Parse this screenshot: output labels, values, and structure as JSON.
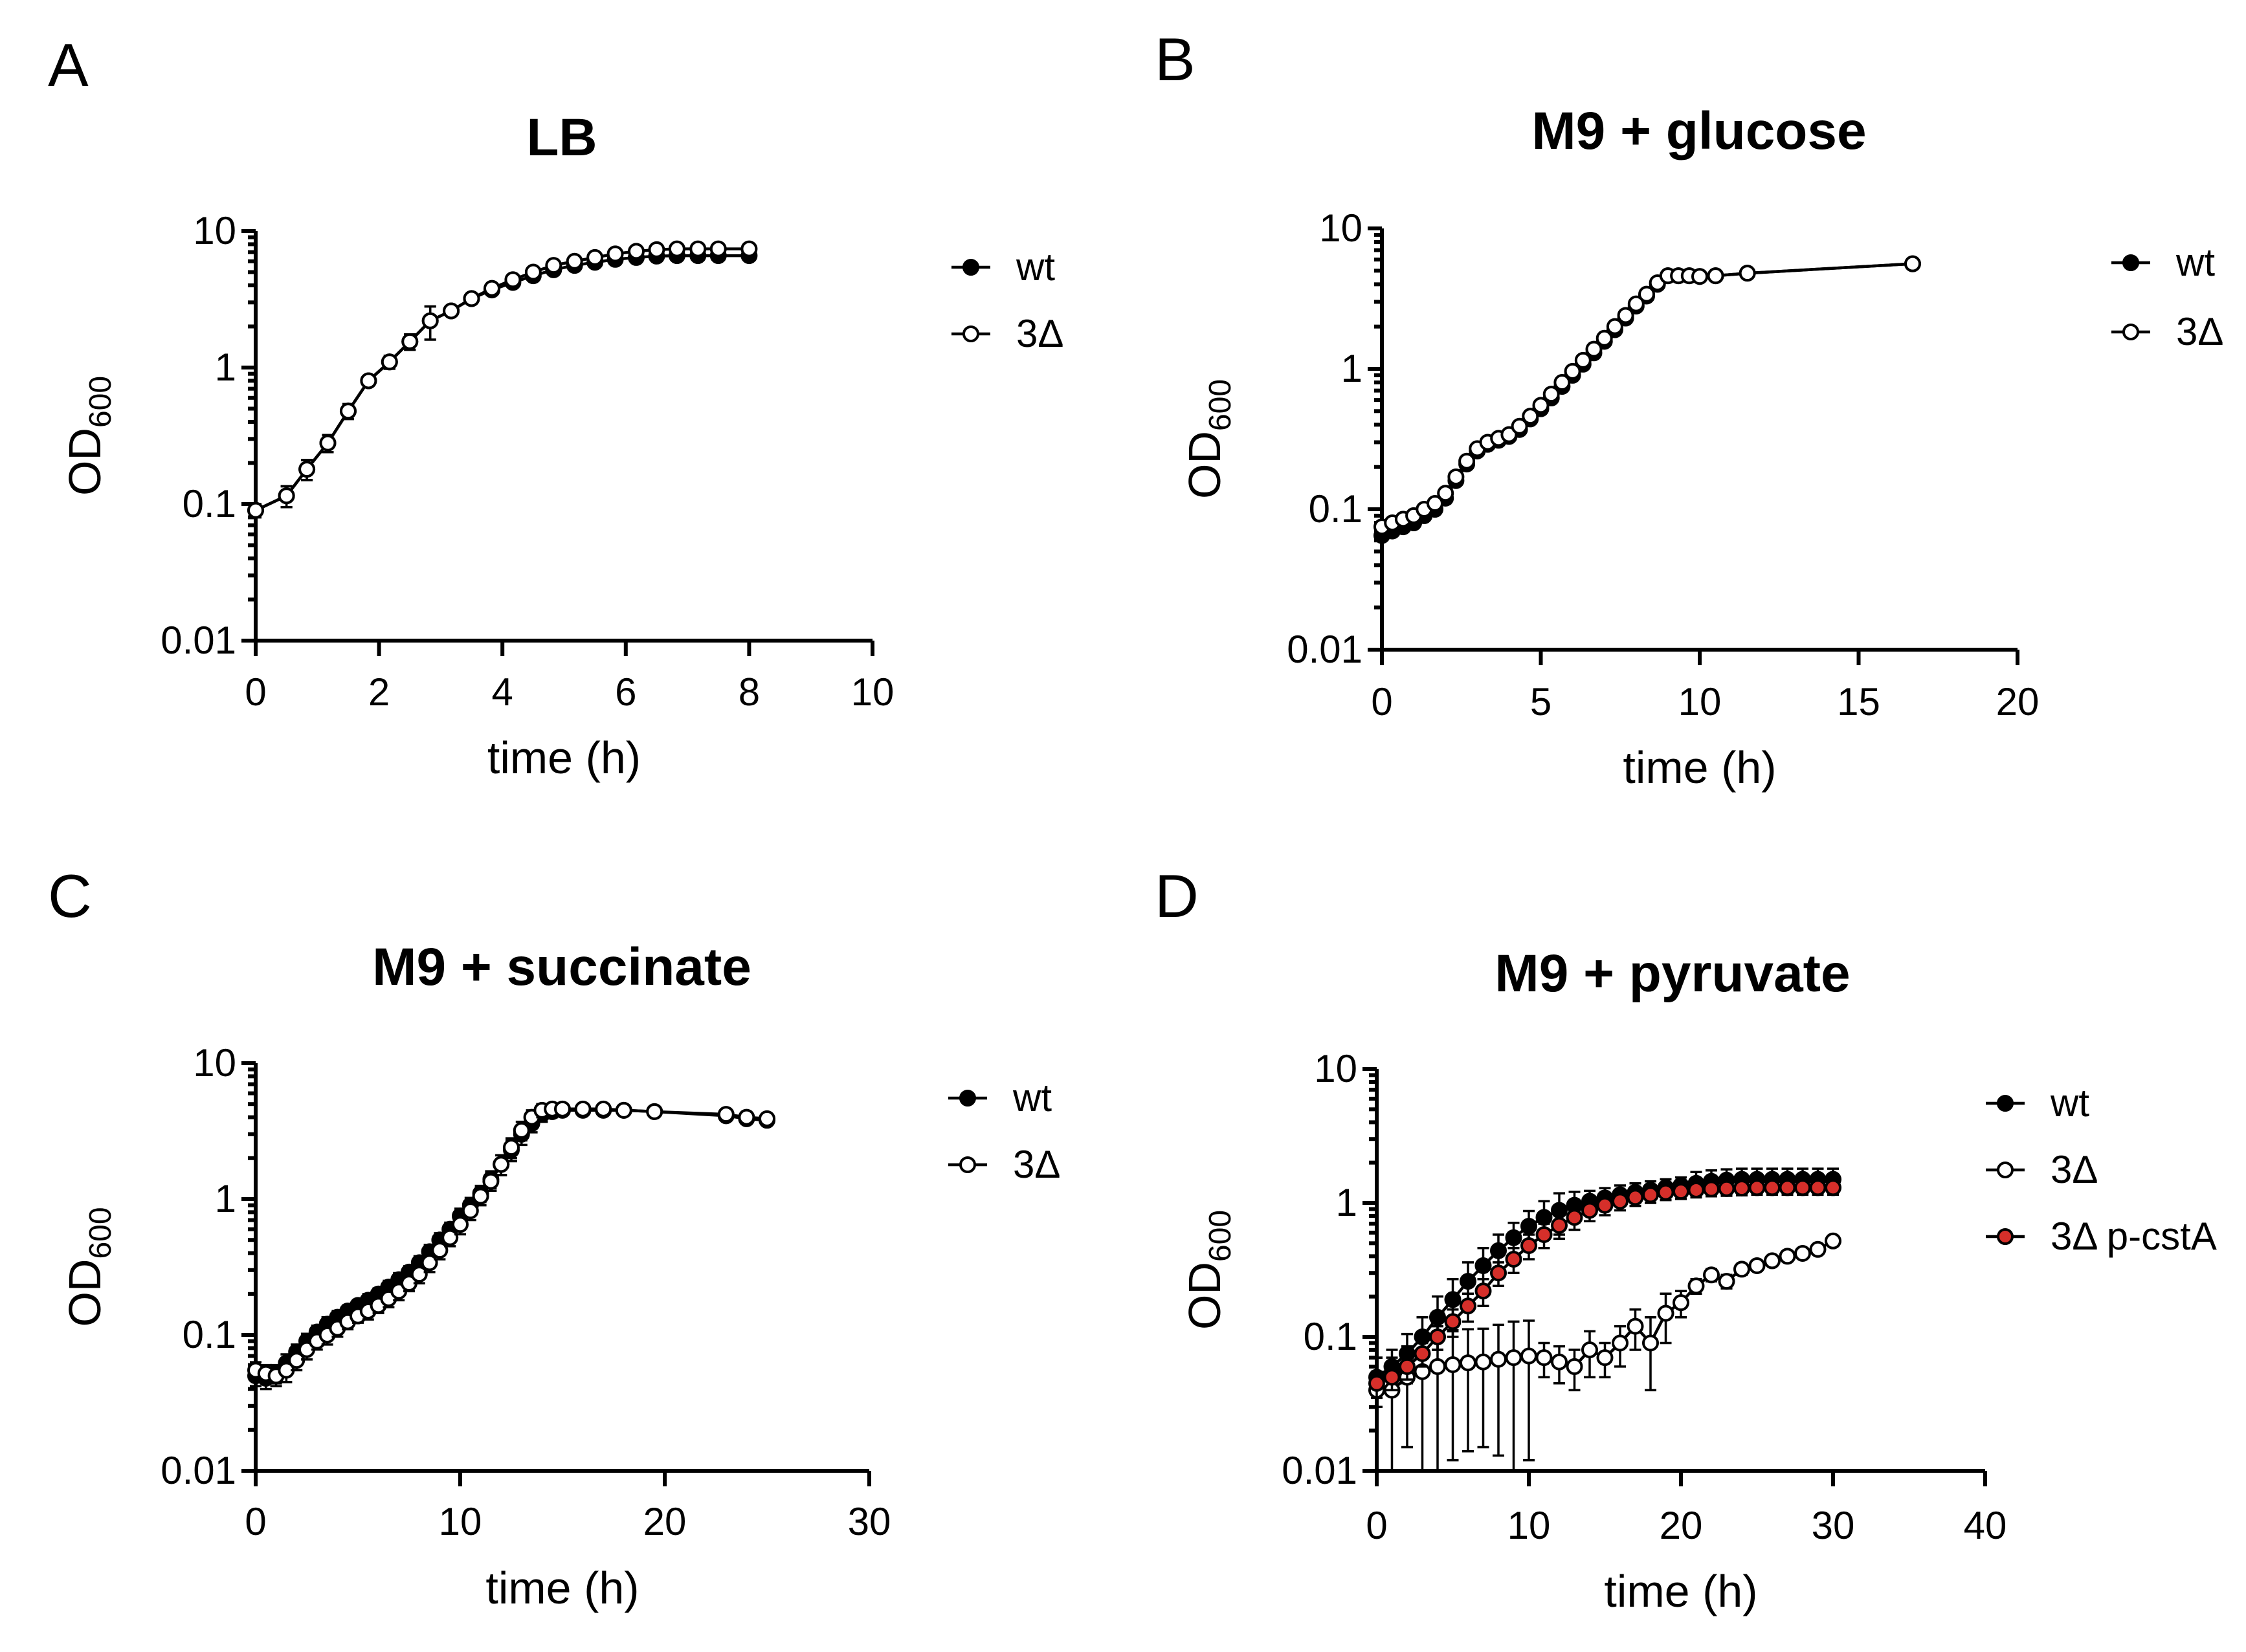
{
  "figure": {
    "panels": [
      {
        "letter": "A",
        "title": "LB"
      },
      {
        "letter": "B",
        "title": "M9 + glucose"
      },
      {
        "letter": "C",
        "title": "M9 + succinate"
      },
      {
        "letter": "D",
        "title": "M9 + pyruvate"
      }
    ]
  },
  "chart_data": [
    {
      "type": "line",
      "title": "LB",
      "xlabel": "time (h)",
      "ylabel": "OD600",
      "yscale": "log",
      "xlim": [
        0,
        10
      ],
      "ylim": [
        0.01,
        10
      ],
      "xticks": [
        0,
        2,
        4,
        6,
        8,
        10
      ],
      "yticks": [
        0.01,
        0.1,
        1,
        10
      ],
      "ytick_labels": [
        "0.01",
        "0.1",
        "1",
        "10"
      ],
      "legend_position": "right",
      "series": [
        {
          "name": "wt",
          "marker": "filled",
          "color": "#000000",
          "x": [
            0,
            0.5,
            0.83,
            1.17,
            1.5,
            1.83,
            2.17,
            2.5,
            2.83,
            3.17,
            3.5,
            3.83,
            4.17,
            4.5,
            4.83,
            5.17,
            5.5,
            5.83,
            6.17,
            6.5,
            6.83,
            7.17,
            7.5,
            8
          ],
          "y": [
            0.09,
            0.115,
            0.18,
            0.28,
            0.48,
            0.8,
            1.1,
            1.55,
            2.2,
            2.6,
            3.2,
            3.7,
            4.2,
            4.7,
            5.2,
            5.6,
            5.9,
            6.2,
            6.4,
            6.55,
            6.6,
            6.6,
            6.6,
            6.6
          ],
          "err": [
            0.01,
            0.02,
            0.03,
            0.04,
            0.06,
            0.06,
            0.12,
            0.2,
            0.6,
            0.2,
            0.2,
            0.2,
            0.2,
            0.2,
            0.2,
            0.2,
            0.2,
            0.2,
            0.2,
            0.2,
            0.2,
            0.2,
            0.2,
            0.2
          ]
        },
        {
          "name": "3Δ",
          "marker": "open",
          "color": "#000000",
          "x": [
            0,
            0.5,
            0.83,
            1.17,
            1.5,
            1.83,
            2.17,
            2.5,
            2.83,
            3.17,
            3.5,
            3.83,
            4.17,
            4.5,
            4.83,
            5.17,
            5.5,
            5.83,
            6.17,
            6.5,
            6.83,
            7.17,
            7.5,
            8
          ],
          "y": [
            0.09,
            0.115,
            0.18,
            0.28,
            0.48,
            0.8,
            1.1,
            1.55,
            2.2,
            2.6,
            3.2,
            3.8,
            4.4,
            5.0,
            5.6,
            6.0,
            6.4,
            6.8,
            7.1,
            7.3,
            7.4,
            7.4,
            7.4,
            7.4
          ],
          "err": [
            0.01,
            0.02,
            0.03,
            0.04,
            0.06,
            0.06,
            0.12,
            0.2,
            0.6,
            0.2,
            0.2,
            0.2,
            0.2,
            0.2,
            0.2,
            0.2,
            0.2,
            0.2,
            0.2,
            0.2,
            0.2,
            0.2,
            0.2,
            0.2
          ]
        }
      ]
    },
    {
      "type": "line",
      "title": "M9 + glucose",
      "xlabel": "time (h)",
      "ylabel": "OD600",
      "yscale": "log",
      "xlim": [
        0,
        20
      ],
      "ylim": [
        0.01,
        10
      ],
      "xticks": [
        0,
        5,
        10,
        15,
        20
      ],
      "yticks": [
        0.01,
        0.1,
        1,
        10
      ],
      "ytick_labels": [
        "0.01",
        "0.1",
        "1",
        "10"
      ],
      "legend_position": "right",
      "series": [
        {
          "name": "wt",
          "marker": "filled",
          "color": "#000000",
          "x": [
            0,
            0.33,
            0.67,
            1,
            1.33,
            1.67,
            2,
            2.33,
            2.67,
            3,
            3.33,
            3.67,
            4,
            4.33,
            4.67,
            5,
            5.33,
            5.67,
            6,
            6.33,
            6.67,
            7,
            7.33,
            7.67,
            8,
            8.33,
            8.67,
            9,
            9.33,
            9.67,
            10,
            10.5,
            11.5,
            16.7
          ],
          "y": [
            0.065,
            0.07,
            0.075,
            0.08,
            0.09,
            0.1,
            0.12,
            0.16,
            0.21,
            0.26,
            0.29,
            0.31,
            0.33,
            0.37,
            0.44,
            0.52,
            0.62,
            0.75,
            0.9,
            1.08,
            1.3,
            1.57,
            1.9,
            2.3,
            2.8,
            3.3,
            4.0,
            4.6,
            4.6,
            4.6,
            4.55,
            4.6,
            4.8,
            5.6
          ],
          "err": [
            0.005,
            0.005,
            0.005,
            0.005,
            0.005,
            0.005,
            0.01,
            0.01,
            0.01,
            0.01,
            0.01,
            0.01,
            0.01,
            0.02,
            0.02,
            0.02,
            0.03,
            0.03,
            0.04,
            0.05,
            0.06,
            0.08,
            0.1,
            0.1,
            0.1,
            0.1,
            0.1,
            0.1,
            0.1,
            0.1,
            0.1,
            0.1,
            0.1,
            0.1
          ]
        },
        {
          "name": "3Δ",
          "marker": "open",
          "color": "#000000",
          "x": [
            0,
            0.33,
            0.67,
            1,
            1.33,
            1.67,
            2,
            2.33,
            2.67,
            3,
            3.33,
            3.67,
            4,
            4.33,
            4.67,
            5,
            5.33,
            5.67,
            6,
            6.33,
            6.67,
            7,
            7.33,
            7.67,
            8,
            8.33,
            8.67,
            9,
            9.33,
            9.67,
            10,
            10.5,
            11.5,
            16.7
          ],
          "y": [
            0.075,
            0.08,
            0.085,
            0.09,
            0.1,
            0.11,
            0.13,
            0.17,
            0.22,
            0.27,
            0.3,
            0.32,
            0.34,
            0.39,
            0.46,
            0.55,
            0.66,
            0.8,
            0.96,
            1.15,
            1.38,
            1.65,
            2.0,
            2.4,
            2.9,
            3.4,
            4.1,
            4.6,
            4.6,
            4.6,
            4.55,
            4.6,
            4.8,
            5.6
          ],
          "err": [
            0.005,
            0.005,
            0.005,
            0.005,
            0.005,
            0.005,
            0.01,
            0.01,
            0.01,
            0.01,
            0.01,
            0.01,
            0.01,
            0.02,
            0.02,
            0.02,
            0.03,
            0.03,
            0.04,
            0.05,
            0.06,
            0.08,
            0.1,
            0.1,
            0.1,
            0.1,
            0.1,
            0.1,
            0.1,
            0.1,
            0.1,
            0.1,
            0.1,
            0.1
          ]
        }
      ]
    },
    {
      "type": "line",
      "title": "M9 + succinate",
      "xlabel": "time (h)",
      "ylabel": "OD600",
      "yscale": "log",
      "xlim": [
        0,
        30
      ],
      "ylim": [
        0.01,
        10
      ],
      "xticks": [
        0,
        10,
        20,
        30
      ],
      "yticks": [
        0.01,
        0.1,
        1,
        10
      ],
      "ytick_labels": [
        "0.01",
        "0.1",
        "1",
        "10"
      ],
      "legend_position": "right",
      "series": [
        {
          "name": "wt",
          "marker": "filled",
          "color": "#000000",
          "x": [
            0,
            0.5,
            1,
            1.5,
            2,
            2.5,
            3,
            3.5,
            4,
            4.5,
            5,
            5.5,
            6,
            6.5,
            7,
            7.5,
            8,
            8.5,
            9,
            9.5,
            10,
            10.5,
            11,
            11.5,
            12,
            12.5,
            13,
            13.5,
            14,
            14.5,
            15,
            16,
            17,
            18,
            19.5,
            23,
            24,
            25
          ],
          "y": [
            0.05,
            0.048,
            0.052,
            0.062,
            0.075,
            0.09,
            0.105,
            0.12,
            0.135,
            0.15,
            0.165,
            0.18,
            0.2,
            0.225,
            0.255,
            0.29,
            0.34,
            0.41,
            0.5,
            0.6,
            0.75,
            0.9,
            1.1,
            1.4,
            1.8,
            2.3,
            3.0,
            3.6,
            4.2,
            4.4,
            4.5,
            4.5,
            4.5,
            4.5,
            4.4,
            4.1,
            3.9,
            3.8
          ],
          "err": [
            0.008,
            0.008,
            0.008,
            0.01,
            0.01,
            0.012,
            0.012,
            0.015,
            0.015,
            0.015,
            0.015,
            0.02,
            0.02,
            0.025,
            0.03,
            0.03,
            0.04,
            0.05,
            0.06,
            0.07,
            0.1,
            0.12,
            0.15,
            0.2,
            0.3,
            0.4,
            0.5,
            0.5,
            0.5,
            0.4,
            0.3,
            0.2,
            0.2,
            0.2,
            0.2,
            0.2,
            0.2,
            0.2
          ]
        },
        {
          "name": "3Δ",
          "marker": "open",
          "color": "#000000",
          "x": [
            0,
            0.5,
            1,
            1.5,
            2,
            2.5,
            3,
            3.5,
            4,
            4.5,
            5,
            5.5,
            6,
            6.5,
            7,
            7.5,
            8,
            8.5,
            9,
            9.5,
            10,
            10.5,
            11,
            11.5,
            12,
            12.5,
            13,
            13.5,
            14,
            14.5,
            15,
            16,
            17,
            18,
            19.5,
            23,
            24,
            25
          ],
          "y": [
            0.055,
            0.052,
            0.05,
            0.055,
            0.065,
            0.078,
            0.09,
            0.1,
            0.112,
            0.125,
            0.138,
            0.15,
            0.165,
            0.185,
            0.21,
            0.24,
            0.28,
            0.34,
            0.42,
            0.52,
            0.65,
            0.82,
            1.05,
            1.35,
            1.8,
            2.4,
            3.2,
            4.0,
            4.5,
            4.6,
            4.6,
            4.6,
            4.6,
            4.5,
            4.4,
            4.2,
            4.0,
            3.9
          ],
          "err": [
            0.008,
            0.008,
            0.008,
            0.01,
            0.01,
            0.012,
            0.012,
            0.015,
            0.015,
            0.015,
            0.015,
            0.02,
            0.02,
            0.025,
            0.03,
            0.03,
            0.04,
            0.05,
            0.06,
            0.07,
            0.1,
            0.12,
            0.15,
            0.2,
            0.3,
            0.4,
            0.5,
            0.5,
            0.5,
            0.4,
            0.3,
            0.2,
            0.2,
            0.2,
            0.2,
            0.2,
            0.2,
            0.2
          ]
        }
      ]
    },
    {
      "type": "line",
      "title": "M9 + pyruvate",
      "xlabel": "time (h)",
      "ylabel": "OD600",
      "yscale": "log",
      "xlim": [
        0,
        40
      ],
      "ylim": [
        0.01,
        10
      ],
      "xticks": [
        0,
        10,
        20,
        30,
        40
      ],
      "yticks": [
        0.01,
        0.1,
        1,
        10
      ],
      "ytick_labels": [
        "0.01",
        "0.1",
        "1",
        "10"
      ],
      "legend_position": "right",
      "series": [
        {
          "name": "wt",
          "marker": "filled",
          "color": "#000000",
          "x": [
            0,
            1,
            2,
            3,
            4,
            5,
            6,
            7,
            8,
            9,
            10,
            11,
            12,
            13,
            14,
            15,
            16,
            17,
            18,
            19,
            20,
            21,
            22,
            23,
            24,
            25,
            26,
            27,
            28,
            29,
            30
          ],
          "y": [
            0.05,
            0.06,
            0.075,
            0.1,
            0.14,
            0.19,
            0.26,
            0.34,
            0.44,
            0.55,
            0.67,
            0.78,
            0.88,
            0.96,
            1.03,
            1.09,
            1.15,
            1.2,
            1.25,
            1.3,
            1.35,
            1.4,
            1.45,
            1.48,
            1.5,
            1.5,
            1.5,
            1.5,
            1.5,
            1.5,
            1.5
          ],
          "err": [
            0.02,
            0.02,
            0.03,
            0.04,
            0.06,
            0.08,
            0.1,
            0.12,
            0.14,
            0.16,
            0.2,
            0.25,
            0.3,
            0.25,
            0.2,
            0.2,
            0.2,
            0.2,
            0.2,
            0.2,
            0.2,
            0.3,
            0.3,
            0.3,
            0.3,
            0.3,
            0.3,
            0.3,
            0.3,
            0.3,
            0.3
          ]
        },
        {
          "name": "3Δ",
          "marker": "open",
          "color": "#000000",
          "x": [
            0,
            1,
            2,
            3,
            4,
            5,
            6,
            7,
            8,
            9,
            10,
            11,
            12,
            13,
            14,
            15,
            16,
            17,
            18,
            19,
            20,
            21,
            22,
            23,
            24,
            25,
            26,
            27,
            28,
            29,
            30
          ],
          "y": [
            0.04,
            0.04,
            0.05,
            0.055,
            0.06,
            0.062,
            0.064,
            0.065,
            0.068,
            0.07,
            0.072,
            0.07,
            0.065,
            0.06,
            0.08,
            0.07,
            0.09,
            0.12,
            0.09,
            0.15,
            0.18,
            0.24,
            0.29,
            0.26,
            0.32,
            0.34,
            0.37,
            0.4,
            0.42,
            0.45,
            0.52
          ],
          "err": [
            0.03,
            0.03,
            0.035,
            0.045,
            0.05,
            0.05,
            0.05,
            0.05,
            0.055,
            0.06,
            0.06,
            0.02,
            0.02,
            0.02,
            0.03,
            0.02,
            0.03,
            0.04,
            0.05,
            0.06,
            0.04,
            0.03,
            0.03,
            0.03,
            0.03,
            0.03,
            0.03,
            0.03,
            0.03,
            0.03,
            0.04
          ]
        },
        {
          "name": "3Δ p-cstA",
          "marker": "filled-red",
          "color": "#d62f2a",
          "x": [
            0,
            1,
            2,
            3,
            4,
            5,
            6,
            7,
            8,
            9,
            10,
            11,
            12,
            13,
            14,
            15,
            16,
            17,
            18,
            19,
            20,
            21,
            22,
            23,
            24,
            25,
            26,
            27,
            28,
            29,
            30
          ],
          "y": [
            0.045,
            0.05,
            0.06,
            0.075,
            0.1,
            0.13,
            0.17,
            0.22,
            0.3,
            0.38,
            0.48,
            0.58,
            0.68,
            0.78,
            0.88,
            0.96,
            1.03,
            1.1,
            1.15,
            1.2,
            1.22,
            1.25,
            1.27,
            1.28,
            1.29,
            1.3,
            1.3,
            1.3,
            1.3,
            1.3,
            1.3
          ],
          "err": [
            0.01,
            0.01,
            0.012,
            0.015,
            0.02,
            0.03,
            0.04,
            0.05,
            0.06,
            0.08,
            0.1,
            0.12,
            0.14,
            0.15,
            0.15,
            0.15,
            0.15,
            0.15,
            0.15,
            0.15,
            0.15,
            0.15,
            0.15,
            0.15,
            0.15,
            0.15,
            0.15,
            0.15,
            0.15,
            0.15,
            0.15
          ]
        }
      ]
    }
  ]
}
